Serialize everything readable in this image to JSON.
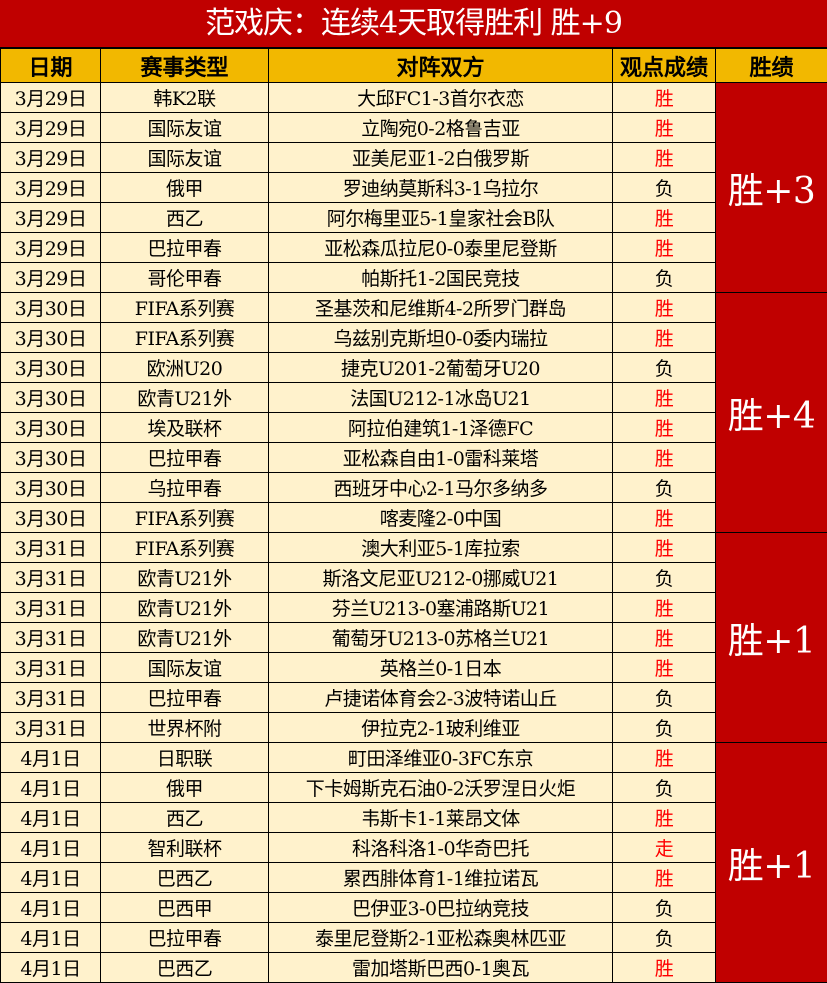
{
  "title": "范戏庆：连续4天取得胜利 胜+9",
  "headers": [
    "日期",
    "赛事类型",
    "对阵双方",
    "观点成绩",
    "胜绩"
  ],
  "colors": {
    "title_bg": "#c00000",
    "header_bg": "#f2b800",
    "row_bg": "#fff2cc",
    "win_text": "#ff0000",
    "group_bg": "#c00000"
  },
  "groups": [
    {
      "summary": "胜+3",
      "rows": [
        {
          "date": "3月29日",
          "league": "韩K2联",
          "match": "大邱FC1-3首尔衣恋",
          "result": "胜"
        },
        {
          "date": "3月29日",
          "league": "国际友谊",
          "match": "立陶宛0-2格鲁吉亚",
          "result": "胜"
        },
        {
          "date": "3月29日",
          "league": "国际友谊",
          "match": "亚美尼亚1-2白俄罗斯",
          "result": "胜"
        },
        {
          "date": "3月29日",
          "league": "俄甲",
          "match": "罗迪纳莫斯科3-1乌拉尔",
          "result": "负"
        },
        {
          "date": "3月29日",
          "league": "西乙",
          "match": "阿尔梅里亚5-1皇家社会B队",
          "result": "胜"
        },
        {
          "date": "3月29日",
          "league": "巴拉甲春",
          "match": "亚松森瓜拉尼0-0泰里尼登斯",
          "result": "胜"
        },
        {
          "date": "3月29日",
          "league": "哥伦甲春",
          "match": "帕斯托1-2国民竞技",
          "result": "负"
        }
      ]
    },
    {
      "summary": "胜+4",
      "rows": [
        {
          "date": "3月30日",
          "league": "FIFA系列赛",
          "match": "圣基茨和尼维斯4-2所罗门群岛",
          "result": "胜"
        },
        {
          "date": "3月30日",
          "league": "FIFA系列赛",
          "match": "乌兹别克斯坦0-0委内瑞拉",
          "result": "胜"
        },
        {
          "date": "3月30日",
          "league": "欧洲U20",
          "match": "捷克U201-2葡萄牙U20",
          "result": "负"
        },
        {
          "date": "3月30日",
          "league": "欧青U21外",
          "match": "法国U212-1冰岛U21",
          "result": "胜"
        },
        {
          "date": "3月30日",
          "league": "埃及联杯",
          "match": "阿拉伯建筑1-1泽德FC",
          "result": "胜"
        },
        {
          "date": "3月30日",
          "league": "巴拉甲春",
          "match": "亚松森自由1-0雷科莱塔",
          "result": "胜"
        },
        {
          "date": "3月30日",
          "league": "乌拉甲春",
          "match": "西班牙中心2-1马尔多纳多",
          "result": "负"
        },
        {
          "date": "3月30日",
          "league": "FIFA系列赛",
          "match": "喀麦隆2-0中国",
          "result": "胜"
        }
      ]
    },
    {
      "summary": "胜+1",
      "rows": [
        {
          "date": "3月31日",
          "league": "FIFA系列赛",
          "match": "澳大利亚5-1库拉索",
          "result": "胜"
        },
        {
          "date": "3月31日",
          "league": "欧青U21外",
          "match": "斯洛文尼亚U212-0挪威U21",
          "result": "负"
        },
        {
          "date": "3月31日",
          "league": "欧青U21外",
          "match": "芬兰U213-0塞浦路斯U21",
          "result": "胜"
        },
        {
          "date": "3月31日",
          "league": "欧青U21外",
          "match": "葡萄牙U213-0苏格兰U21",
          "result": "胜"
        },
        {
          "date": "3月31日",
          "league": "国际友谊",
          "match": "英格兰0-1日本",
          "result": "胜"
        },
        {
          "date": "3月31日",
          "league": "巴拉甲春",
          "match": "卢捷诺体育会2-3波特诺山丘",
          "result": "负"
        },
        {
          "date": "3月31日",
          "league": "世界杯附",
          "match": "伊拉克2-1玻利维亚",
          "result": "负"
        }
      ]
    },
    {
      "summary": "胜+1",
      "rows": [
        {
          "date": "4月1日",
          "league": "日职联",
          "match": "町田泽维亚0-3FC东京",
          "result": "胜"
        },
        {
          "date": "4月1日",
          "league": "俄甲",
          "match": "下卡姆斯克石油0-2沃罗涅日火炬",
          "result": "负"
        },
        {
          "date": "4月1日",
          "league": "西乙",
          "match": "韦斯卡1-1莱昂文体",
          "result": "胜"
        },
        {
          "date": "4月1日",
          "league": "智利联杯",
          "match": "科洛科洛1-0华奇巴托",
          "result": "走"
        },
        {
          "date": "4月1日",
          "league": "巴西乙",
          "match": "累西腓体育1-1维拉诺瓦",
          "result": "胜"
        },
        {
          "date": "4月1日",
          "league": "巴西甲",
          "match": "巴伊亚3-0巴拉纳竞技",
          "result": "负"
        },
        {
          "date": "4月1日",
          "league": "巴拉甲春",
          "match": "泰里尼登斯2-1亚松森奥林匹亚",
          "result": "负"
        },
        {
          "date": "4月1日",
          "league": "巴西乙",
          "match": "雷加塔斯巴西0-1奥瓦",
          "result": "胜"
        }
      ]
    }
  ]
}
